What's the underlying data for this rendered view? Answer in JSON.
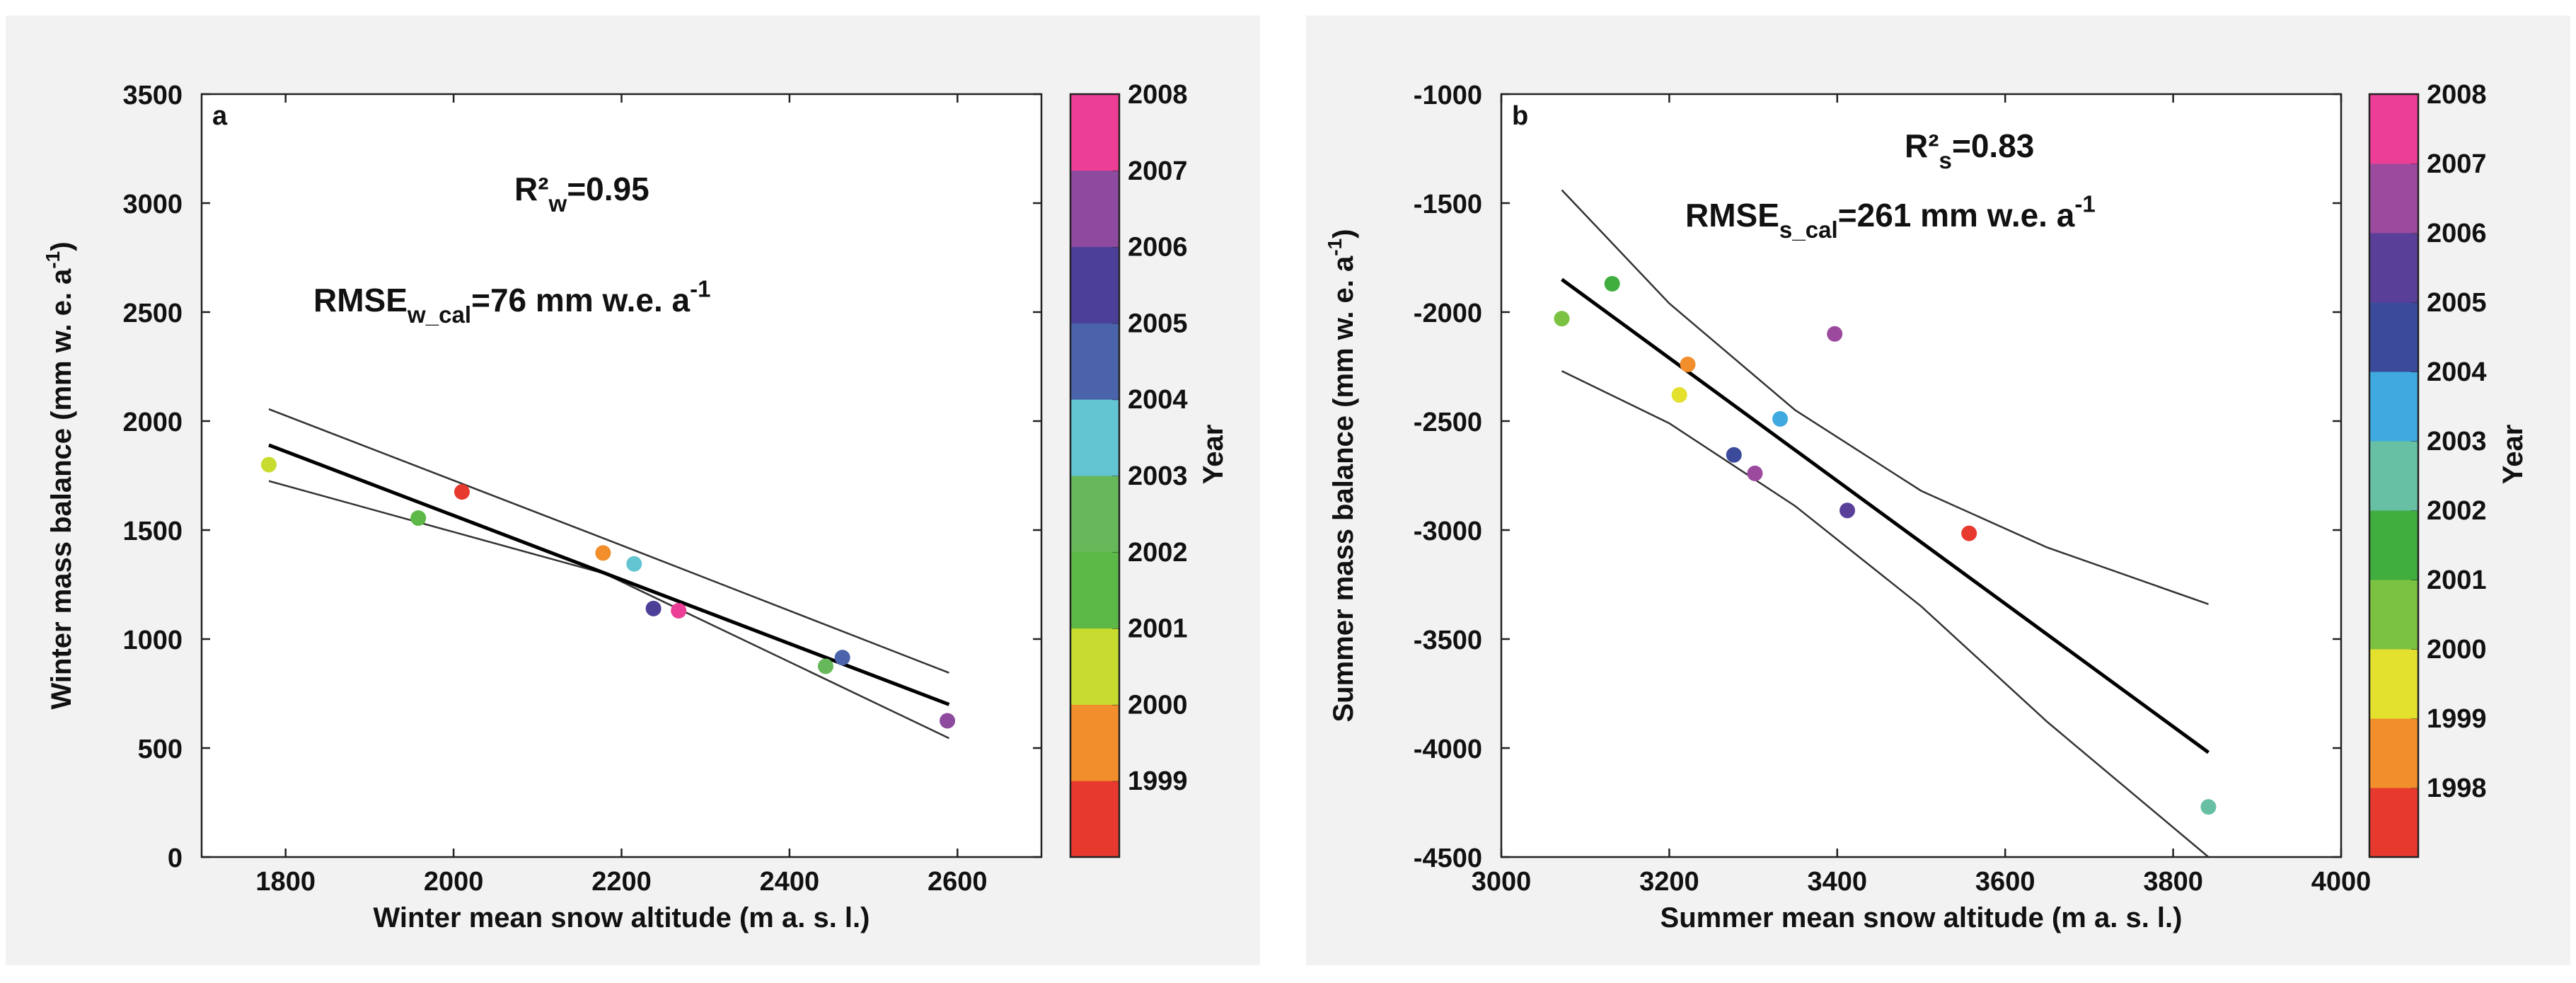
{
  "chart_data": [
    {
      "type": "scatter",
      "panel_label": "a",
      "xlabel": "Winter mean snow altitude (m a. s. l.)",
      "ylabel": {
        "base": "Winter mass balance (mm w. e. a",
        "sup": "-1",
        "end": ")"
      },
      "xlim": [
        1700,
        2700
      ],
      "ylim": [
        0,
        3500
      ],
      "xticks": [
        1800,
        2000,
        2200,
        2400,
        2600
      ],
      "yticks": [
        0,
        500,
        1000,
        1500,
        2000,
        2500,
        3000,
        3500
      ],
      "annotations": {
        "r2": {
          "base": "R²",
          "sub": "w",
          "end": "=0.95"
        },
        "rmse": {
          "base": "RMSE",
          "sub": "w_cal",
          "end": "=76 mm w.e. a",
          "sup": "-1"
        }
      },
      "colorbar": {
        "label": "Year",
        "years": [
          1999,
          2000,
          2001,
          2002,
          2003,
          2004,
          2005,
          2006,
          2007,
          2008
        ],
        "colors": [
          "#e8392f",
          "#f28e2b",
          "#c7dc2e",
          "#5cb947",
          "#67b85a",
          "#63c4d2",
          "#4a63aa",
          "#4b3f98",
          "#8d4a9e",
          "#ec3e96"
        ]
      },
      "points": [
        {
          "x": 1780,
          "y": 1800,
          "color": "#c7dc2e"
        },
        {
          "x": 1958,
          "y": 1555,
          "color": "#5cb947"
        },
        {
          "x": 2010,
          "y": 1675,
          "color": "#e8392f"
        },
        {
          "x": 2178,
          "y": 1395,
          "color": "#f28e2b"
        },
        {
          "x": 2215,
          "y": 1345,
          "color": "#63c4d2"
        },
        {
          "x": 2238,
          "y": 1140,
          "color": "#4b3f98"
        },
        {
          "x": 2268,
          "y": 1130,
          "color": "#ec3e96"
        },
        {
          "x": 2443,
          "y": 875,
          "color": "#67b85a"
        },
        {
          "x": 2463,
          "y": 915,
          "color": "#4a63aa"
        },
        {
          "x": 2588,
          "y": 625,
          "color": "#8d4a9e"
        }
      ],
      "fit": {
        "x": [
          1780,
          2590
        ],
        "y": [
          1890,
          700
        ]
      },
      "upper": {
        "x": [
          1780,
          2180,
          2590
        ],
        "y": [
          2055,
          1460,
          845
        ]
      },
      "lower": {
        "x": [
          1780,
          2180,
          2590
        ],
        "y": [
          1725,
          1300,
          545
        ]
      }
    },
    {
      "type": "scatter",
      "panel_label": "b",
      "xlabel": "Summer mean snow altitude (m a. s. l.)",
      "ylabel": {
        "base": "Summer mass balance (mm w. e. a",
        "sup": "-1",
        "end": ")"
      },
      "xlim": [
        3000,
        4000
      ],
      "ylim": [
        -4500,
        -1000
      ],
      "xticks": [
        3000,
        3200,
        3400,
        3600,
        3800,
        4000
      ],
      "yticks": [
        -4500,
        -4000,
        -3500,
        -3000,
        -2500,
        -2000,
        -1500,
        -1000
      ],
      "annotations": {
        "r2": {
          "base": "R²",
          "sub": "s",
          "end": "=0.83"
        },
        "rmse": {
          "base": "RMSE",
          "sub": "s_cal",
          "end": "=261 mm w.e. a",
          "sup": "-1"
        }
      },
      "colorbar": {
        "label": "Year",
        "years": [
          1998,
          1999,
          2000,
          2001,
          2002,
          2003,
          2004,
          2005,
          2006,
          2007,
          2008
        ],
        "colors": [
          "#e8392f",
          "#f28e2b",
          "#e3e02e",
          "#7cc242",
          "#3fae3f",
          "#67bfa4",
          "#3fa9e0",
          "#3b4a9b",
          "#5a3f98",
          "#9c4a9e",
          "#ec3e96"
        ]
      },
      "points": [
        {
          "x": 3072,
          "y": -2030,
          "color": "#7cc242"
        },
        {
          "x": 3132,
          "y": -1870,
          "color": "#3fae3f"
        },
        {
          "x": 3212,
          "y": -2380,
          "color": "#e3e02e"
        },
        {
          "x": 3222,
          "y": -2240,
          "color": "#f28e2b"
        },
        {
          "x": 3277,
          "y": -2655,
          "color": "#3b4a9b"
        },
        {
          "x": 3302,
          "y": -2740,
          "color": "#9c4a9e"
        },
        {
          "x": 3332,
          "y": -2490,
          "color": "#3fa9e0"
        },
        {
          "x": 3397,
          "y": -2100,
          "color": "#9c4a9e"
        },
        {
          "x": 3412,
          "y": -2910,
          "color": "#5a3f98"
        },
        {
          "x": 3557,
          "y": -3015,
          "color": "#e8392f"
        },
        {
          "x": 3842,
          "y": -4270,
          "color": "#67bfa4"
        }
      ],
      "fit": {
        "x": [
          3072,
          3842
        ],
        "y": [
          -1850,
          -4020
        ]
      },
      "upper": {
        "x": [
          3072,
          3200,
          3350,
          3500,
          3650,
          3842
        ],
        "y": [
          -1440,
          -1960,
          -2450,
          -2820,
          -3080,
          -3340
        ]
      },
      "lower": {
        "x": [
          3072,
          3200,
          3350,
          3500,
          3650,
          3842
        ],
        "y": [
          -2270,
          -2510,
          -2890,
          -3350,
          -3880,
          -4500
        ]
      }
    }
  ]
}
